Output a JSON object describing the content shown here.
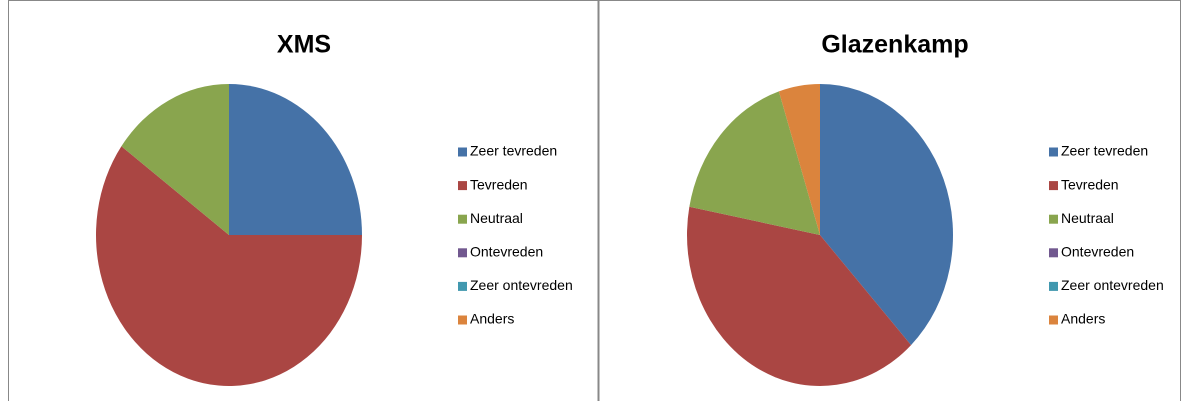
{
  "chart_data": [
    {
      "type": "pie",
      "title": "XMS",
      "categories": [
        "Zeer tevreden",
        "Tevreden",
        "Neutraal",
        "Ontevreden",
        "Zeer ontevreden",
        "Anders"
      ],
      "values": [
        25,
        60,
        15,
        0,
        0,
        0
      ],
      "colors": [
        "#4572a7",
        "#aa4643",
        "#89a54e",
        "#71588f",
        "#4198af",
        "#db843d"
      ]
    },
    {
      "type": "pie",
      "title": "Glazenkamp",
      "categories": [
        "Zeer tevreden",
        "Tevreden",
        "Neutraal",
        "Ontevreden",
        "Zeer ontevreden",
        "Anders"
      ],
      "values": [
        38,
        40,
        17,
        0,
        0,
        5
      ],
      "colors": [
        "#4572a7",
        "#aa4643",
        "#89a54e",
        "#71588f",
        "#4198af",
        "#db843d"
      ]
    }
  ]
}
